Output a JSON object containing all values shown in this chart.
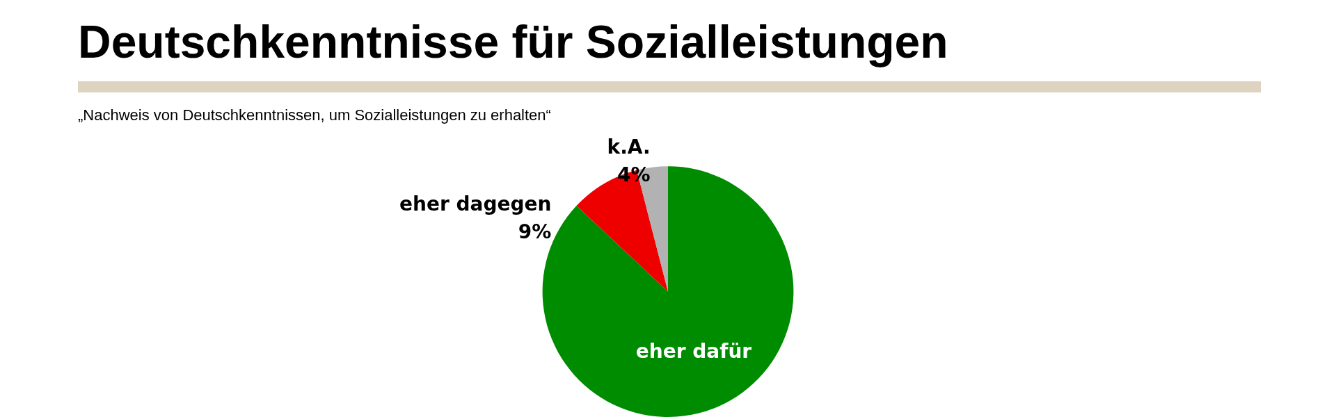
{
  "chart_data": {
    "type": "pie",
    "title": "Deutschkenntnisse für Sozialleistungen",
    "subtitle": "„Nachweis von Deutschkenntnissen, um Sozialleistungen zu erhalten“",
    "categories": [
      "eher dafür",
      "eher dagegen",
      "k.A."
    ],
    "values": [
      87,
      9,
      4
    ],
    "value_labels": [
      null,
      "9%",
      "4%"
    ],
    "colors": [
      "#008c00",
      "#ee0000",
      "#b2b2b2"
    ],
    "legend": false
  }
}
